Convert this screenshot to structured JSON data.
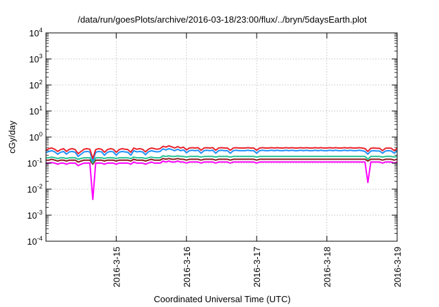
{
  "chart_data": {
    "type": "line",
    "title": "/data/run/goesPlots/archive/2016-03-18/23:00/flux/../bryn/5daysEarth.plot",
    "xlabel": "Coordinated Universal Time (UTC)",
    "ylabel": "cGy/day",
    "yscale": "log",
    "ylim": [
      0.0001,
      10000
    ],
    "y_ticks": [
      {
        "value": 0.0001,
        "base": "10",
        "exp": "-4"
      },
      {
        "value": 0.001,
        "base": "10",
        "exp": "-3"
      },
      {
        "value": 0.01,
        "base": "10",
        "exp": "-2"
      },
      {
        "value": 0.1,
        "base": "10",
        "exp": "-1"
      },
      {
        "value": 1,
        "base": "10",
        "exp": "0"
      },
      {
        "value": 10,
        "base": "10",
        "exp": "1"
      },
      {
        "value": 100,
        "base": "10",
        "exp": "2"
      },
      {
        "value": 1000,
        "base": "10",
        "exp": "3"
      },
      {
        "value": 10000,
        "base": "10",
        "exp": "4"
      }
    ],
    "xlim": [
      "2016-03-14T00:00",
      "2016-03-19T00:00"
    ],
    "x_ticks": [
      "2016-3-15",
      "2016-3-16",
      "2016-3-17",
      "2016-3-18",
      "2016-3-19"
    ],
    "grid": true,
    "series": [
      {
        "color": "#ff00ff",
        "values": [
          0.1,
          0.1,
          0.105,
          0.1,
          0.09,
          0.1,
          0.1,
          0.09,
          0.1,
          0.1,
          0.1,
          0.08,
          0.09,
          0.1,
          0.1,
          0.1,
          0.004,
          0.1,
          0.1,
          0.1,
          0.09,
          0.1,
          0.1,
          0.1,
          0.09,
          0.1,
          0.1,
          0.1,
          0.1,
          0.09,
          0.11,
          0.1,
          0.1,
          0.1,
          0.09,
          0.1,
          0.11,
          0.1,
          0.1,
          0.1,
          0.12,
          0.11,
          0.12,
          0.11,
          0.11,
          0.12,
          0.11,
          0.11,
          0.1,
          0.11,
          0.11,
          0.11,
          0.11,
          0.1,
          0.11,
          0.11,
          0.11,
          0.11,
          0.1,
          0.11,
          0.11,
          0.11,
          0.11,
          0.1,
          0.11,
          0.11,
          0.11,
          0.11,
          0.11,
          0.11,
          0.11,
          0.11,
          0.1,
          0.11,
          0.11,
          0.11,
          0.11,
          0.11,
          0.11,
          0.11,
          0.11,
          0.11,
          0.11,
          0.11,
          0.11,
          0.11,
          0.11,
          0.11,
          0.11,
          0.11,
          0.11,
          0.11,
          0.11,
          0.11,
          0.11,
          0.11,
          0.11,
          0.11,
          0.11,
          0.11,
          0.11,
          0.11,
          0.11,
          0.11,
          0.11,
          0.11,
          0.11,
          0.11,
          0.11,
          0.11,
          0.018,
          0.11,
          0.11,
          0.11,
          0.11,
          0.1,
          0.11,
          0.11,
          0.11,
          0.1,
          0.11
        ]
      },
      {
        "color": "#8b1a1a",
        "values": [
          0.13,
          0.13,
          0.14,
          0.13,
          0.12,
          0.13,
          0.13,
          0.12,
          0.13,
          0.13,
          0.13,
          0.11,
          0.12,
          0.13,
          0.13,
          0.13,
          0.09,
          0.13,
          0.13,
          0.13,
          0.12,
          0.13,
          0.13,
          0.13,
          0.12,
          0.13,
          0.13,
          0.13,
          0.13,
          0.12,
          0.14,
          0.13,
          0.13,
          0.13,
          0.12,
          0.13,
          0.14,
          0.13,
          0.13,
          0.13,
          0.15,
          0.14,
          0.15,
          0.14,
          0.14,
          0.15,
          0.14,
          0.14,
          0.13,
          0.14,
          0.14,
          0.14,
          0.14,
          0.13,
          0.14,
          0.14,
          0.14,
          0.14,
          0.13,
          0.14,
          0.14,
          0.14,
          0.14,
          0.13,
          0.14,
          0.14,
          0.14,
          0.14,
          0.14,
          0.14,
          0.14,
          0.14,
          0.13,
          0.14,
          0.14,
          0.14,
          0.14,
          0.14,
          0.14,
          0.14,
          0.14,
          0.14,
          0.14,
          0.14,
          0.14,
          0.14,
          0.14,
          0.14,
          0.14,
          0.14,
          0.14,
          0.14,
          0.14,
          0.14,
          0.14,
          0.14,
          0.14,
          0.14,
          0.14,
          0.14,
          0.14,
          0.14,
          0.14,
          0.14,
          0.14,
          0.14,
          0.14,
          0.14,
          0.14,
          0.14,
          0.12,
          0.14,
          0.14,
          0.14,
          0.14,
          0.13,
          0.14,
          0.14,
          0.14,
          0.13,
          0.14
        ]
      },
      {
        "color": "#1fbf8f",
        "values": [
          0.16,
          0.16,
          0.17,
          0.16,
          0.15,
          0.16,
          0.16,
          0.15,
          0.16,
          0.16,
          0.16,
          0.14,
          0.15,
          0.16,
          0.16,
          0.16,
          0.1,
          0.16,
          0.16,
          0.16,
          0.15,
          0.16,
          0.16,
          0.16,
          0.15,
          0.16,
          0.16,
          0.16,
          0.16,
          0.15,
          0.17,
          0.16,
          0.16,
          0.16,
          0.15,
          0.16,
          0.17,
          0.16,
          0.16,
          0.16,
          0.19,
          0.18,
          0.19,
          0.18,
          0.18,
          0.19,
          0.18,
          0.18,
          0.17,
          0.18,
          0.18,
          0.18,
          0.18,
          0.17,
          0.18,
          0.18,
          0.18,
          0.18,
          0.17,
          0.18,
          0.18,
          0.18,
          0.18,
          0.17,
          0.18,
          0.18,
          0.18,
          0.18,
          0.18,
          0.18,
          0.18,
          0.18,
          0.17,
          0.18,
          0.18,
          0.18,
          0.18,
          0.18,
          0.18,
          0.18,
          0.18,
          0.18,
          0.18,
          0.18,
          0.18,
          0.18,
          0.18,
          0.18,
          0.18,
          0.18,
          0.18,
          0.18,
          0.18,
          0.18,
          0.18,
          0.18,
          0.18,
          0.18,
          0.18,
          0.18,
          0.18,
          0.18,
          0.18,
          0.18,
          0.18,
          0.18,
          0.18,
          0.18,
          0.18,
          0.18,
          0.14,
          0.18,
          0.18,
          0.18,
          0.18,
          0.17,
          0.18,
          0.18,
          0.18,
          0.17,
          0.18
        ]
      },
      {
        "color": "#1e90ff",
        "values": [
          0.25,
          0.28,
          0.3,
          0.27,
          0.22,
          0.26,
          0.28,
          0.22,
          0.27,
          0.28,
          0.26,
          0.18,
          0.22,
          0.27,
          0.28,
          0.27,
          0.12,
          0.26,
          0.28,
          0.27,
          0.2,
          0.26,
          0.28,
          0.27,
          0.2,
          0.26,
          0.28,
          0.27,
          0.26,
          0.2,
          0.3,
          0.27,
          0.28,
          0.27,
          0.21,
          0.27,
          0.3,
          0.28,
          0.27,
          0.28,
          0.35,
          0.32,
          0.36,
          0.33,
          0.3,
          0.34,
          0.3,
          0.32,
          0.25,
          0.3,
          0.31,
          0.3,
          0.31,
          0.24,
          0.3,
          0.31,
          0.3,
          0.31,
          0.24,
          0.3,
          0.31,
          0.3,
          0.3,
          0.24,
          0.3,
          0.31,
          0.3,
          0.3,
          0.3,
          0.31,
          0.3,
          0.3,
          0.24,
          0.3,
          0.31,
          0.3,
          0.3,
          0.31,
          0.3,
          0.31,
          0.3,
          0.3,
          0.31,
          0.3,
          0.31,
          0.3,
          0.3,
          0.31,
          0.3,
          0.31,
          0.3,
          0.3,
          0.31,
          0.3,
          0.31,
          0.3,
          0.3,
          0.31,
          0.3,
          0.31,
          0.3,
          0.3,
          0.31,
          0.3,
          0.31,
          0.3,
          0.3,
          0.31,
          0.3,
          0.28,
          0.22,
          0.29,
          0.3,
          0.29,
          0.29,
          0.24,
          0.29,
          0.3,
          0.29,
          0.24,
          0.29
        ]
      },
      {
        "color": "#e8202a",
        "values": [
          0.32,
          0.36,
          0.38,
          0.34,
          0.28,
          0.33,
          0.36,
          0.28,
          0.34,
          0.36,
          0.33,
          0.23,
          0.28,
          0.34,
          0.36,
          0.34,
          0.15,
          0.33,
          0.36,
          0.34,
          0.26,
          0.33,
          0.36,
          0.34,
          0.26,
          0.33,
          0.36,
          0.34,
          0.33,
          0.26,
          0.38,
          0.34,
          0.36,
          0.34,
          0.27,
          0.34,
          0.38,
          0.36,
          0.34,
          0.36,
          0.44,
          0.41,
          0.46,
          0.42,
          0.38,
          0.43,
          0.38,
          0.41,
          0.32,
          0.38,
          0.39,
          0.38,
          0.39,
          0.31,
          0.38,
          0.39,
          0.38,
          0.39,
          0.31,
          0.38,
          0.39,
          0.38,
          0.38,
          0.31,
          0.38,
          0.39,
          0.38,
          0.38,
          0.38,
          0.39,
          0.38,
          0.38,
          0.31,
          0.38,
          0.39,
          0.38,
          0.38,
          0.39,
          0.38,
          0.39,
          0.38,
          0.38,
          0.39,
          0.38,
          0.39,
          0.38,
          0.38,
          0.39,
          0.38,
          0.39,
          0.38,
          0.38,
          0.39,
          0.38,
          0.39,
          0.38,
          0.38,
          0.39,
          0.38,
          0.39,
          0.38,
          0.38,
          0.39,
          0.38,
          0.39,
          0.38,
          0.38,
          0.39,
          0.38,
          0.36,
          0.28,
          0.37,
          0.38,
          0.37,
          0.37,
          0.3,
          0.37,
          0.38,
          0.37,
          0.3,
          0.37
        ]
      }
    ]
  }
}
